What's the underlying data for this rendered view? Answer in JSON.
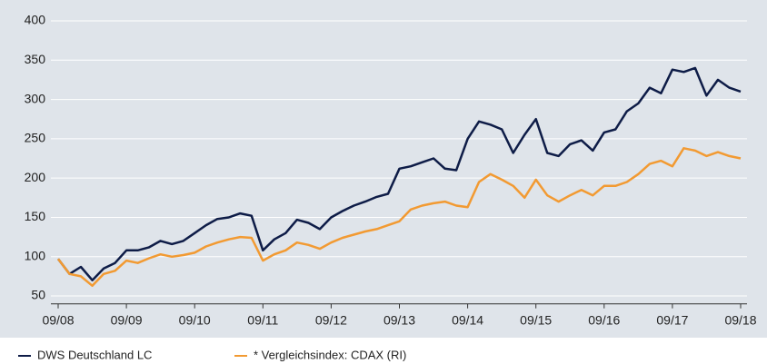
{
  "chart_data": {
    "type": "line",
    "x": [
      "09/08",
      "11/08",
      "01/09",
      "03/09",
      "05/09",
      "07/09",
      "09/09",
      "11/09",
      "01/10",
      "03/10",
      "05/10",
      "07/10",
      "09/10",
      "11/10",
      "01/11",
      "03/11",
      "05/11",
      "07/11",
      "09/11",
      "11/11",
      "01/12",
      "03/12",
      "05/12",
      "07/12",
      "09/12",
      "11/12",
      "01/13",
      "03/13",
      "05/13",
      "07/13",
      "09/13",
      "11/13",
      "01/14",
      "03/14",
      "05/14",
      "07/14",
      "09/14",
      "11/14",
      "01/15",
      "03/15",
      "05/15",
      "07/15",
      "09/15",
      "11/15",
      "01/16",
      "03/16",
      "05/16",
      "07/16",
      "09/16",
      "11/16",
      "01/17",
      "03/17",
      "05/17",
      "07/17",
      "09/17",
      "11/17",
      "01/18",
      "03/18",
      "05/18",
      "07/18",
      "09/18"
    ],
    "series": [
      {
        "name": "DWS Deutschland LC",
        "color": "#0e1c47",
        "values": [
          97,
          78,
          87,
          70,
          85,
          92,
          108,
          108,
          112,
          120,
          116,
          120,
          130,
          140,
          148,
          150,
          155,
          152,
          108,
          122,
          130,
          147,
          143,
          135,
          150,
          158,
          165,
          170,
          176,
          180,
          212,
          215,
          220,
          225,
          212,
          210,
          250,
          272,
          268,
          262,
          232,
          255,
          275,
          232,
          228,
          243,
          248,
          235,
          258,
          262,
          285,
          295,
          315,
          308,
          338,
          335,
          340,
          305,
          325,
          315,
          310
        ]
      },
      {
        "name": "* Vergleichsindex: CDAX (RI)",
        "color": "#f29a32",
        "values": [
          97,
          78,
          75,
          63,
          78,
          82,
          95,
          92,
          98,
          103,
          100,
          102,
          105,
          113,
          118,
          122,
          125,
          124,
          95,
          103,
          108,
          118,
          115,
          110,
          118,
          124,
          128,
          132,
          135,
          140,
          145,
          160,
          165,
          168,
          170,
          165,
          163,
          195,
          205,
          198,
          190,
          175,
          198,
          178,
          170,
          178,
          185,
          178,
          190,
          190,
          195,
          205,
          218,
          222,
          215,
          238,
          235,
          228,
          233,
          228,
          225
        ]
      }
    ],
    "xlim": [
      "09/08",
      "09/18"
    ],
    "xticks": [
      "09/08",
      "09/09",
      "09/10",
      "09/11",
      "09/12",
      "09/13",
      "09/14",
      "09/15",
      "09/16",
      "09/17",
      "09/18"
    ],
    "ylim": [
      40,
      400
    ],
    "yticks": [
      50,
      100,
      150,
      200,
      250,
      300,
      350,
      400
    ],
    "grid": true
  }
}
